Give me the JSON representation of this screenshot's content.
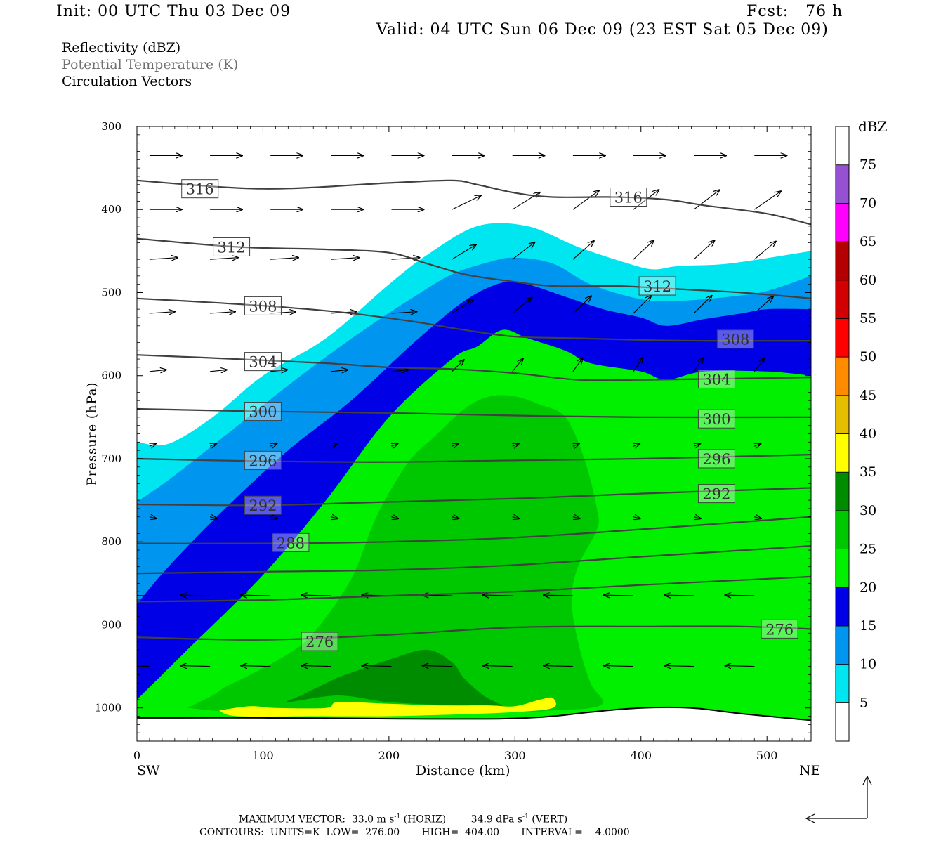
{
  "header": {
    "init": "Init: 00 UTC Thu 03 Dec 09",
    "fcst": "Fcst:   76 h",
    "valid": "Valid: 04 UTC Sun 06 Dec 09 (23 EST Sat 05 Dec 09)",
    "fields": [
      "Reflectivity (dBZ)",
      "Potential Temperature (K)",
      "Circulation Vectors"
    ]
  },
  "chart_data": {
    "type": "heatmap",
    "title": "Reflectivity (dBZ), Potential Temperature (K), Circulation Vectors",
    "xlabel": "Distance (km)",
    "ylabel": "Pressure (hPa)",
    "xlim": [
      0,
      535
    ],
    "ylim": [
      1040,
      300
    ],
    "y_scale": "linear",
    "x_ticks": [
      0,
      100,
      200,
      300,
      400,
      500
    ],
    "y_ticks": [
      300,
      400,
      500,
      600,
      700,
      800,
      900,
      1000
    ],
    "x_end_labels": {
      "left": "SW",
      "right": "NE"
    },
    "colorbar": {
      "title": "dBZ",
      "levels": [
        5,
        10,
        15,
        20,
        25,
        30,
        35,
        40,
        45,
        50,
        55,
        60,
        65,
        70,
        75
      ],
      "colors": [
        "#ffffff",
        "#00e6f0",
        "#0096f0",
        "#0000e6",
        "#00f000",
        "#00c800",
        "#008c00",
        "#ffff00",
        "#e6be00",
        "#ff8c00",
        "#ff0000",
        "#d20000",
        "#b40000",
        "#ff00ff",
        "#9650d2",
        "#ffffff"
      ]
    },
    "reflectivity_bands": [
      {
        "dbz_min": 5,
        "color": "#00e6f0",
        "top": [
          [
            0,
            680
          ],
          [
            25,
            682
          ],
          [
            60,
            650
          ],
          [
            100,
            600
          ],
          [
            150,
            555
          ],
          [
            200,
            490
          ],
          [
            230,
            455
          ],
          [
            270,
            420
          ],
          [
            310,
            420
          ],
          [
            350,
            445
          ],
          [
            390,
            465
          ],
          [
            410,
            472
          ],
          [
            430,
            468
          ],
          [
            470,
            465
          ],
          [
            535,
            450
          ]
        ]
      },
      {
        "dbz_min": 10,
        "color": "#0096f0",
        "top": [
          [
            0,
            752
          ],
          [
            30,
            720
          ],
          [
            80,
            660
          ],
          [
            130,
            600
          ],
          [
            180,
            545
          ],
          [
            220,
            505
          ],
          [
            250,
            478
          ],
          [
            280,
            463
          ],
          [
            300,
            458
          ],
          [
            330,
            465
          ],
          [
            360,
            490
          ],
          [
            400,
            508
          ],
          [
            430,
            510
          ],
          [
            470,
            505
          ],
          [
            500,
            498
          ],
          [
            535,
            480
          ]
        ]
      },
      {
        "dbz_min": 15,
        "color": "#0000e6",
        "top": [
          [
            0,
            875
          ],
          [
            25,
            830
          ],
          [
            70,
            760
          ],
          [
            120,
            690
          ],
          [
            170,
            630
          ],
          [
            220,
            560
          ],
          [
            260,
            510
          ],
          [
            290,
            488
          ],
          [
            310,
            490
          ],
          [
            340,
            505
          ],
          [
            370,
            520
          ],
          [
            400,
            530
          ],
          [
            420,
            540
          ],
          [
            450,
            532
          ],
          [
            480,
            525
          ],
          [
            500,
            520
          ],
          [
            535,
            520
          ]
        ]
      },
      {
        "dbz_min": 20,
        "color": "#00f000",
        "top": [
          [
            0,
            990
          ],
          [
            40,
            930
          ],
          [
            100,
            840
          ],
          [
            150,
            750
          ],
          [
            200,
            650
          ],
          [
            250,
            580
          ],
          [
            270,
            565
          ],
          [
            290,
            545
          ],
          [
            310,
            555
          ],
          [
            340,
            570
          ],
          [
            360,
            585
          ],
          [
            400,
            595
          ],
          [
            420,
            605
          ],
          [
            450,
            595
          ],
          [
            500,
            595
          ],
          [
            535,
            600
          ]
        ]
      },
      {
        "dbz_min": 25,
        "color": "#00c800",
        "top": [
          [
            40,
            1000
          ],
          [
            60,
            985
          ],
          [
            70,
            975
          ],
          [
            90,
            960
          ],
          [
            120,
            935
          ],
          [
            140,
            910
          ],
          [
            170,
            845
          ],
          [
            190,
            770
          ],
          [
            215,
            705
          ],
          [
            235,
            675
          ],
          [
            260,
            640
          ],
          [
            280,
            625
          ],
          [
            300,
            625
          ],
          [
            320,
            635
          ],
          [
            340,
            650
          ],
          [
            355,
            700
          ],
          [
            365,
            760
          ],
          [
            365,
            785
          ],
          [
            350,
            830
          ],
          [
            345,
            870
          ],
          [
            350,
            920
          ],
          [
            360,
            970
          ],
          [
            370,
            992
          ],
          [
            360,
            1000
          ],
          [
            330,
            1003
          ],
          [
            300,
            1005
          ],
          [
            200,
            1005
          ],
          [
            100,
            1007
          ],
          [
            40,
            1000
          ]
        ]
      },
      {
        "dbz_min": 30,
        "color": "#008c00",
        "top": [
          [
            160,
            963
          ],
          [
            200,
            942
          ],
          [
            230,
            930
          ],
          [
            250,
            945
          ],
          [
            260,
            965
          ],
          [
            275,
            985
          ],
          [
            290,
            1000
          ],
          [
            250,
            997
          ],
          [
            200,
            993
          ],
          [
            160,
            985
          ],
          [
            120,
            993
          ],
          [
            130,
            985
          ],
          [
            160,
            963
          ]
        ]
      },
      {
        "dbz_min": 35,
        "color": "#ffff00",
        "top": [
          [
            65,
            1003
          ],
          [
            90,
            998
          ],
          [
            110,
            1000
          ],
          [
            150,
            1000
          ],
          [
            160,
            993
          ],
          [
            200,
            995
          ],
          [
            240,
            997
          ],
          [
            280,
            997
          ],
          [
            300,
            998
          ],
          [
            320,
            990
          ],
          [
            330,
            988
          ],
          [
            330,
            1000
          ],
          [
            300,
            1005
          ],
          [
            250,
            1008
          ],
          [
            200,
            1010
          ],
          [
            140,
            1010
          ],
          [
            80,
            1010
          ],
          [
            65,
            1003
          ]
        ]
      }
    ],
    "theta_contours_K": [
      276,
      288,
      292,
      296,
      300,
      304,
      308,
      312,
      316
    ],
    "theta_lines": [
      {
        "theta": 316,
        "labels": [
          [
            50,
            375
          ],
          [
            390,
            385
          ]
        ],
        "points": [
          [
            0,
            365
          ],
          [
            100,
            375
          ],
          [
            200,
            368
          ],
          [
            250,
            365
          ],
          [
            270,
            370
          ],
          [
            300,
            380
          ],
          [
            330,
            385
          ],
          [
            380,
            385
          ],
          [
            420,
            388
          ],
          [
            450,
            395
          ],
          [
            500,
            405
          ],
          [
            535,
            418
          ]
        ]
      },
      {
        "theta": 312,
        "labels": [
          [
            75,
            445
          ],
          [
            413,
            492
          ]
        ],
        "points": [
          [
            0,
            435
          ],
          [
            80,
            445
          ],
          [
            150,
            448
          ],
          [
            200,
            452
          ],
          [
            230,
            465
          ],
          [
            260,
            478
          ],
          [
            290,
            485
          ],
          [
            330,
            492
          ],
          [
            380,
            492
          ],
          [
            420,
            495
          ],
          [
            480,
            500
          ],
          [
            535,
            507
          ]
        ]
      },
      {
        "theta": 308,
        "labels": [
          [
            100,
            516
          ],
          [
            475,
            556
          ]
        ],
        "points": [
          [
            0,
            507
          ],
          [
            60,
            512
          ],
          [
            120,
            518
          ],
          [
            170,
            525
          ],
          [
            220,
            535
          ],
          [
            260,
            545
          ],
          [
            300,
            553
          ],
          [
            350,
            555
          ],
          [
            400,
            557
          ],
          [
            450,
            558
          ],
          [
            535,
            558
          ]
        ]
      },
      {
        "theta": 304,
        "labels": [
          [
            100,
            583
          ],
          [
            460,
            604
          ]
        ],
        "points": [
          [
            0,
            575
          ],
          [
            80,
            580
          ],
          [
            150,
            585
          ],
          [
            200,
            590
          ],
          [
            250,
            592
          ],
          [
            300,
            597
          ],
          [
            350,
            605
          ],
          [
            400,
            605
          ],
          [
            450,
            604
          ],
          [
            535,
            602
          ]
        ]
      },
      {
        "theta": 300,
        "labels": [
          [
            100,
            643
          ],
          [
            460,
            652
          ]
        ],
        "points": [
          [
            0,
            640
          ],
          [
            100,
            643
          ],
          [
            200,
            645
          ],
          [
            300,
            648
          ],
          [
            400,
            650
          ],
          [
            535,
            650
          ]
        ]
      },
      {
        "theta": 296,
        "labels": [
          [
            100,
            702
          ],
          [
            460,
            700
          ]
        ],
        "points": [
          [
            0,
            700
          ],
          [
            100,
            703
          ],
          [
            200,
            704
          ],
          [
            300,
            702
          ],
          [
            400,
            700
          ],
          [
            535,
            695
          ]
        ]
      },
      {
        "theta": 292,
        "labels": [
          [
            100,
            756
          ],
          [
            460,
            742
          ]
        ],
        "points": [
          [
            0,
            755
          ],
          [
            100,
            756
          ],
          [
            200,
            752
          ],
          [
            300,
            748
          ],
          [
            400,
            742
          ],
          [
            535,
            735
          ]
        ]
      },
      {
        "theta": 288,
        "labels": [
          [
            122,
            801
          ]
        ],
        "points": [
          [
            0,
            802
          ],
          [
            100,
            802
          ],
          [
            200,
            800
          ],
          [
            300,
            795
          ],
          [
            400,
            785
          ],
          [
            535,
            770
          ]
        ]
      },
      {
        "theta": 284,
        "labels": [],
        "points": [
          [
            0,
            838
          ],
          [
            100,
            836
          ],
          [
            200,
            834
          ],
          [
            300,
            828
          ],
          [
            400,
            818
          ],
          [
            535,
            805
          ]
        ]
      },
      {
        "theta": 280,
        "labels": [],
        "points": [
          [
            0,
            872
          ],
          [
            100,
            870
          ],
          [
            200,
            865
          ],
          [
            300,
            860
          ],
          [
            400,
            852
          ],
          [
            535,
            842
          ]
        ]
      },
      {
        "theta": 276,
        "labels": [
          [
            145,
            920
          ],
          [
            510,
            905
          ]
        ],
        "points": [
          [
            0,
            915
          ],
          [
            100,
            918
          ],
          [
            200,
            912
          ],
          [
            300,
            903
          ],
          [
            400,
            902
          ],
          [
            480,
            902
          ],
          [
            535,
            905
          ]
        ]
      }
    ],
    "terrain_pressure_hPa": [
      [
        0,
        1012
      ],
      [
        100,
        1012
      ],
      [
        200,
        1013
      ],
      [
        290,
        1013
      ],
      [
        330,
        1010
      ],
      [
        360,
        1005
      ],
      [
        400,
        1000
      ],
      [
        440,
        1000
      ],
      [
        480,
        1007
      ],
      [
        535,
        1015
      ]
    ],
    "max_vector": {
      "horizontal_m_s": 33.0,
      "vertical_dPa_s": 34.9
    },
    "contour_units": "K",
    "contour_low": 276.0,
    "contour_high": 404.0,
    "contour_interval": 4.0
  },
  "footer": {
    "max_vector_prefix": "MAXIMUM VECTOR:  33.0 m s",
    "max_vector_mid": " (HORIZ)        34.9 dPa s",
    "max_vector_suffix": " (VERT)",
    "exponent": "-1",
    "contours": "CONTOURS:  UNITS=K  LOW=  276.00       HIGH=  404.00       INTERVAL=    4.0000"
  },
  "colors": {
    "frame": "#000000",
    "contour": "#404040",
    "label_box": "#ffffff"
  }
}
